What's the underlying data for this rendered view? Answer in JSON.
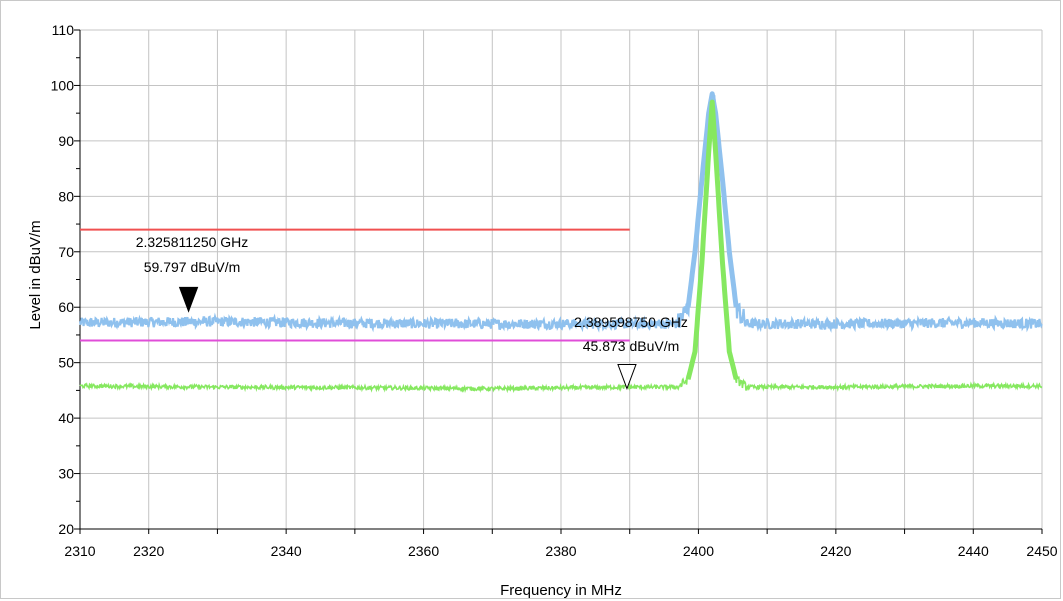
{
  "chart_data": {
    "type": "line",
    "title": "",
    "xlabel": "Frequency in MHz",
    "ylabel": "Level in dBuV/m",
    "xlim": [
      2310,
      2450
    ],
    "ylim": [
      20,
      110
    ],
    "x_ticks": [
      2310,
      2320,
      2340,
      2360,
      2380,
      2400,
      2420,
      2440,
      2450
    ],
    "y_ticks": [
      20,
      30,
      40,
      50,
      60,
      70,
      80,
      90,
      100,
      110
    ],
    "grid": true,
    "series": [
      {
        "color": "#8fc1ee",
        "points": [
          [
            2310,
            57.2
          ],
          [
            2330,
            57.4
          ],
          [
            2350,
            57.1
          ],
          [
            2370,
            57.0
          ],
          [
            2390,
            57.0
          ],
          [
            2397,
            57.0
          ],
          [
            2398.5,
            60
          ],
          [
            2399.5,
            70
          ],
          [
            2400.5,
            83
          ],
          [
            2401.5,
            95
          ],
          [
            2402,
            98.5
          ],
          [
            2402.5,
            95
          ],
          [
            2403.5,
            83
          ],
          [
            2404.5,
            70
          ],
          [
            2405.5,
            60
          ],
          [
            2407,
            57.0
          ],
          [
            2420,
            57.0
          ],
          [
            2440,
            57.2
          ],
          [
            2450,
            57.0
          ]
        ]
      },
      {
        "color": "#86e860",
        "points": [
          [
            2310,
            45.8
          ],
          [
            2330,
            45.6
          ],
          [
            2350,
            45.5
          ],
          [
            2370,
            45.3
          ],
          [
            2390,
            45.6
          ],
          [
            2397,
            45.6
          ],
          [
            2398.5,
            47
          ],
          [
            2399.5,
            52
          ],
          [
            2400.5,
            68
          ],
          [
            2401.5,
            88
          ],
          [
            2402,
            97
          ],
          [
            2402.5,
            88
          ],
          [
            2403.5,
            68
          ],
          [
            2404.5,
            52
          ],
          [
            2405.5,
            47
          ],
          [
            2407,
            45.6
          ],
          [
            2420,
            45.6
          ],
          [
            2440,
            45.8
          ],
          [
            2450,
            45.8
          ]
        ]
      }
    ],
    "limit_lines": [
      {
        "color": "#f05050",
        "y": 74,
        "x_start": 2310,
        "x_end": 2390
      },
      {
        "color": "#e04ed8",
        "y": 54,
        "x_start": 2310,
        "x_end": 2390
      }
    ],
    "markers": [
      {
        "freq_label": "2.325811250 GHz",
        "level_label": "59.797 dBuV/m",
        "x": 2325.8,
        "y": 59.797,
        "style": "filled"
      },
      {
        "freq_label": "2.389598750 GHz",
        "level_label": "45.873 dBuV/m",
        "x": 2389.6,
        "y": 45.873,
        "style": "hollow"
      }
    ]
  }
}
